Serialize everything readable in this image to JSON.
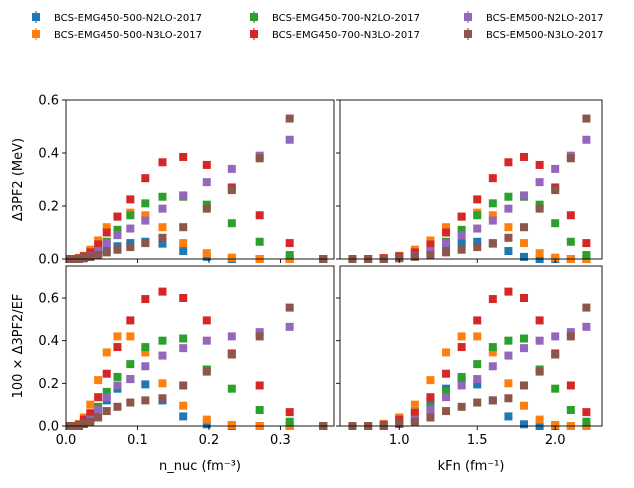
{
  "chart_data": {
    "type": "scatter",
    "legend_position": "top",
    "colors": {
      "BCS-EMG450-500-N2LO-2017": "#1f77b4",
      "BCS-EMG450-500-N3LO-2017": "#ff7f0e",
      "BCS-EMG450-700-N2LO-2017": "#2ca02c",
      "BCS-EMG450-700-N3LO-2017": "#d62728",
      "BCS-EM500-N2LO-2017": "#9467bd",
      "BCS-EM500-N3LO-2017": "#8c564b"
    },
    "legend": [
      "BCS-EMG450-500-N2LO-2017",
      "BCS-EMG450-500-N3LO-2017",
      "BCS-EMG450-700-N2LO-2017",
      "BCS-EMG450-700-N3LO-2017",
      "BCS-EM500-N2LO-2017",
      "BCS-EM500-N3LO-2017"
    ],
    "x_nuc": [
      0.006,
      0.012,
      0.018,
      0.025,
      0.034,
      0.045,
      0.057,
      0.072,
      0.09,
      0.111,
      0.135,
      0.164,
      0.197,
      0.232,
      0.271,
      0.313,
      0.36
    ],
    "x_kf": [
      0.7,
      0.8,
      0.9,
      1.0,
      1.1,
      1.2,
      1.3,
      1.4,
      1.5,
      1.6,
      1.7,
      1.8,
      1.9,
      2.0,
      2.1,
      2.2
    ],
    "panels": [
      {
        "id": "top-left",
        "xaxis": "nuc",
        "ylabel": "Δ3PF2 (MeV)",
        "ylim": [
          0,
          0.6
        ],
        "yticks": [
          "0.0",
          "0.2",
          "0.4",
          "0.6"
        ],
        "series": [
          {
            "name": "BCS-EMG450-500-N2LO-2017",
            "values": [
              0.0,
              0.0,
              0.0,
              0.003,
              0.008,
              0.018,
              0.033,
              0.048,
              0.06,
              0.065,
              0.058,
              0.03,
              0.008,
              0.0,
              0.0,
              0.0,
              0.0
            ]
          },
          {
            "name": "BCS-EMG450-500-N3LO-2017",
            "values": [
              0.0,
              0.0,
              0.003,
              0.012,
              0.035,
              0.07,
              0.12,
              0.16,
              0.175,
              0.165,
              0.12,
              0.06,
              0.022,
              0.005,
              0.0,
              0.0,
              0.0
            ]
          },
          {
            "name": "BCS-EMG450-700-N2LO-2017",
            "values": [
              0.0,
              0.0,
              0.0,
              0.005,
              0.015,
              0.035,
              0.065,
              0.11,
              0.165,
              0.21,
              0.235,
              0.235,
              0.205,
              0.135,
              0.065,
              0.015,
              0.0
            ]
          },
          {
            "name": "BCS-EMG450-700-N3LO-2017",
            "values": [
              0.0,
              0.0,
              0.003,
              0.01,
              0.025,
              0.055,
              0.1,
              0.16,
              0.225,
              0.305,
              0.365,
              0.385,
              0.355,
              0.27,
              0.165,
              0.06,
              0.0
            ]
          },
          {
            "name": "BCS-EM500-N2LO-2017",
            "values": [
              0.0,
              0.0,
              0.0,
              0.003,
              0.01,
              0.03,
              0.06,
              0.09,
              0.115,
              0.145,
              0.19,
              0.24,
              0.29,
              0.34,
              0.39,
              0.45,
              0.0
            ]
          },
          {
            "name": "BCS-EM500-N3LO-2017",
            "values": [
              0.0,
              0.0,
              0.0,
              0.003,
              0.008,
              0.015,
              0.025,
              0.035,
              0.045,
              0.06,
              0.08,
              0.12,
              0.19,
              0.26,
              0.38,
              0.53,
              0.0
            ]
          }
        ]
      },
      {
        "id": "top-right",
        "xaxis": "kf",
        "ylim": [
          0,
          0.6
        ],
        "series": [
          {
            "name": "BCS-EMG450-500-N2LO-2017",
            "values": [
              0.0,
              0.0,
              0.0,
              0.008,
              0.018,
              0.033,
              0.048,
              0.06,
              0.065,
              0.058,
              0.03,
              0.008,
              0.0,
              0.0,
              0.0,
              0.0
            ]
          },
          {
            "name": "BCS-EMG450-500-N3LO-2017",
            "values": [
              0.0,
              0.0,
              0.003,
              0.012,
              0.035,
              0.07,
              0.12,
              0.16,
              0.175,
              0.165,
              0.12,
              0.06,
              0.022,
              0.005,
              0.0,
              0.0
            ]
          },
          {
            "name": "BCS-EMG450-700-N2LO-2017",
            "values": [
              0.0,
              0.0,
              0.0,
              0.005,
              0.015,
              0.035,
              0.065,
              0.11,
              0.165,
              0.21,
              0.235,
              0.235,
              0.205,
              0.135,
              0.065,
              0.015
            ]
          },
          {
            "name": "BCS-EMG450-700-N3LO-2017",
            "values": [
              0.0,
              0.0,
              0.003,
              0.01,
              0.025,
              0.055,
              0.1,
              0.16,
              0.225,
              0.305,
              0.365,
              0.385,
              0.355,
              0.27,
              0.165,
              0.06
            ]
          },
          {
            "name": "BCS-EM500-N2LO-2017",
            "values": [
              0.0,
              0.0,
              0.0,
              0.003,
              0.01,
              0.03,
              0.06,
              0.09,
              0.115,
              0.145,
              0.19,
              0.24,
              0.29,
              0.34,
              0.39,
              0.45
            ]
          },
          {
            "name": "BCS-EM500-N3LO-2017",
            "values": [
              0.0,
              0.0,
              0.0,
              0.003,
              0.008,
              0.015,
              0.025,
              0.035,
              0.045,
              0.06,
              0.08,
              0.12,
              0.19,
              0.26,
              0.38,
              0.53
            ]
          }
        ]
      },
      {
        "id": "bottom-left",
        "xaxis": "nuc",
        "ylabel": "100 × Δ3PF2/EF",
        "ylim": [
          0,
          0.75
        ],
        "yticks": [
          "0.0",
          "0.2",
          "0.4",
          "0.6"
        ],
        "xlabel": "n_nuc (fm⁻³)",
        "xticks": [
          "0.0",
          "0.1",
          "0.2",
          "0.3"
        ],
        "series": [
          {
            "name": "BCS-EMG450-500-N2LO-2017",
            "values": [
              0.0,
              0.0,
              0.0,
              0.01,
              0.03,
              0.07,
              0.12,
              0.175,
              0.22,
              0.195,
              0.12,
              0.045,
              0.008,
              0.0,
              0.0,
              0.0,
              0.0
            ]
          },
          {
            "name": "BCS-EMG450-500-N3LO-2017",
            "values": [
              0.0,
              0.0,
              0.01,
              0.04,
              0.1,
              0.215,
              0.345,
              0.42,
              0.42,
              0.345,
              0.2,
              0.095,
              0.03,
              0.005,
              0.0,
              0.0,
              0.0
            ]
          },
          {
            "name": "BCS-EMG450-700-N2LO-2017",
            "values": [
              0.0,
              0.0,
              0.0,
              0.015,
              0.04,
              0.09,
              0.16,
              0.23,
              0.29,
              0.37,
              0.4,
              0.41,
              0.265,
              0.175,
              0.075,
              0.02,
              0.0
            ]
          },
          {
            "name": "BCS-EMG450-700-N3LO-2017",
            "values": [
              0.0,
              0.0,
              0.005,
              0.03,
              0.06,
              0.135,
              0.245,
              0.37,
              0.495,
              0.595,
              0.63,
              0.6,
              0.495,
              0.34,
              0.19,
              0.065,
              0.0
            ]
          },
          {
            "name": "BCS-EM500-N2LO-2017",
            "values": [
              0.0,
              0.0,
              0.0,
              0.01,
              0.03,
              0.075,
              0.135,
              0.19,
              0.22,
              0.28,
              0.33,
              0.365,
              0.4,
              0.42,
              0.44,
              0.465,
              0.0
            ]
          },
          {
            "name": "BCS-EM500-N3LO-2017",
            "values": [
              0.0,
              0.0,
              0.0,
              0.01,
              0.02,
              0.04,
              0.07,
              0.09,
              0.11,
              0.12,
              0.13,
              0.19,
              0.255,
              0.335,
              0.42,
              0.555,
              0.0
            ]
          }
        ]
      },
      {
        "id": "bottom-right",
        "xaxis": "kf",
        "ylim": [
          0,
          0.75
        ],
        "xlabel": "kFn (fm⁻¹)",
        "xticks": [
          "1.0",
          "1.5",
          "2.0"
        ],
        "series": [
          {
            "name": "BCS-EMG450-500-N2LO-2017",
            "values": [
              0.0,
              0.0,
              0.0,
              0.03,
              0.07,
              0.12,
              0.175,
              0.22,
              0.195,
              0.12,
              0.045,
              0.008,
              0.0,
              0.0,
              0.0,
              0.0
            ]
          },
          {
            "name": "BCS-EMG450-500-N3LO-2017",
            "values": [
              0.0,
              0.0,
              0.01,
              0.04,
              0.1,
              0.215,
              0.345,
              0.42,
              0.42,
              0.345,
              0.2,
              0.095,
              0.03,
              0.005,
              0.0,
              0.0
            ]
          },
          {
            "name": "BCS-EMG450-700-N2LO-2017",
            "values": [
              0.0,
              0.0,
              0.0,
              0.015,
              0.04,
              0.09,
              0.16,
              0.23,
              0.29,
              0.37,
              0.4,
              0.41,
              0.265,
              0.175,
              0.075,
              0.02
            ]
          },
          {
            "name": "BCS-EMG450-700-N3LO-2017",
            "values": [
              0.0,
              0.0,
              0.005,
              0.03,
              0.06,
              0.135,
              0.245,
              0.37,
              0.495,
              0.595,
              0.63,
              0.6,
              0.495,
              0.34,
              0.19,
              0.065
            ]
          },
          {
            "name": "BCS-EM500-N2LO-2017",
            "values": [
              0.0,
              0.0,
              0.0,
              0.01,
              0.03,
              0.075,
              0.135,
              0.19,
              0.22,
              0.28,
              0.33,
              0.365,
              0.4,
              0.42,
              0.44,
              0.465
            ]
          },
          {
            "name": "BCS-EM500-N3LO-2017",
            "values": [
              0.0,
              0.0,
              0.0,
              0.01,
              0.02,
              0.04,
              0.07,
              0.09,
              0.11,
              0.12,
              0.13,
              0.19,
              0.255,
              0.335,
              0.42,
              0.555
            ]
          }
        ]
      }
    ],
    "axes": {
      "nuc": {
        "xlim": [
          0,
          0.375
        ]
      },
      "kf": {
        "xlim": [
          0.62,
          2.3
        ]
      }
    }
  }
}
